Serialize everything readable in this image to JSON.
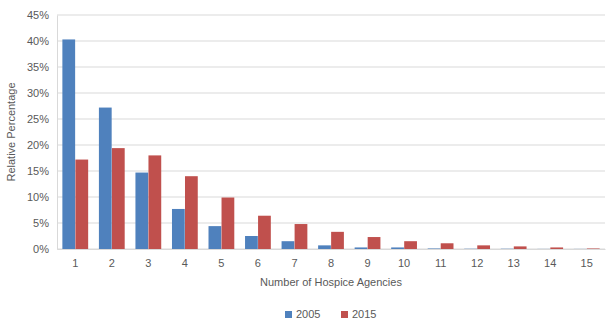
{
  "chart_data": {
    "type": "bar",
    "x_label": "Number of Hospice Agencies",
    "y_label": "Relative Percentage",
    "categories": [
      "1",
      "2",
      "3",
      "4",
      "5",
      "6",
      "7",
      "8",
      "9",
      "10",
      "11",
      "12",
      "13",
      "14",
      "15"
    ],
    "series": [
      {
        "name": "2005",
        "color": "#4f81bd",
        "values": [
          40.3,
          27.2,
          14.7,
          7.7,
          4.4,
          2.5,
          1.5,
          0.7,
          0.3,
          0.3,
          0.1,
          0.05,
          0.05,
          0.02,
          0.02
        ]
      },
      {
        "name": "2015",
        "color": "#c0504d",
        "values": [
          17.2,
          19.4,
          18.0,
          14.0,
          9.9,
          6.4,
          4.8,
          3.3,
          2.3,
          1.5,
          1.1,
          0.7,
          0.5,
          0.3,
          0.1
        ]
      }
    ],
    "ylim": [
      0,
      45
    ],
    "yticks": [
      {
        "value": 0,
        "label": "0%"
      },
      {
        "value": 5,
        "label": "5%"
      },
      {
        "value": 10,
        "label": "10%"
      },
      {
        "value": 15,
        "label": "15%"
      },
      {
        "value": 20,
        "label": "20%"
      },
      {
        "value": 25,
        "label": "25%"
      },
      {
        "value": 30,
        "label": "30%"
      },
      {
        "value": 35,
        "label": "35%"
      },
      {
        "value": 40,
        "label": "40%"
      },
      {
        "value": 45,
        "label": "45%"
      }
    ],
    "grid": true,
    "legend": "bottom"
  }
}
